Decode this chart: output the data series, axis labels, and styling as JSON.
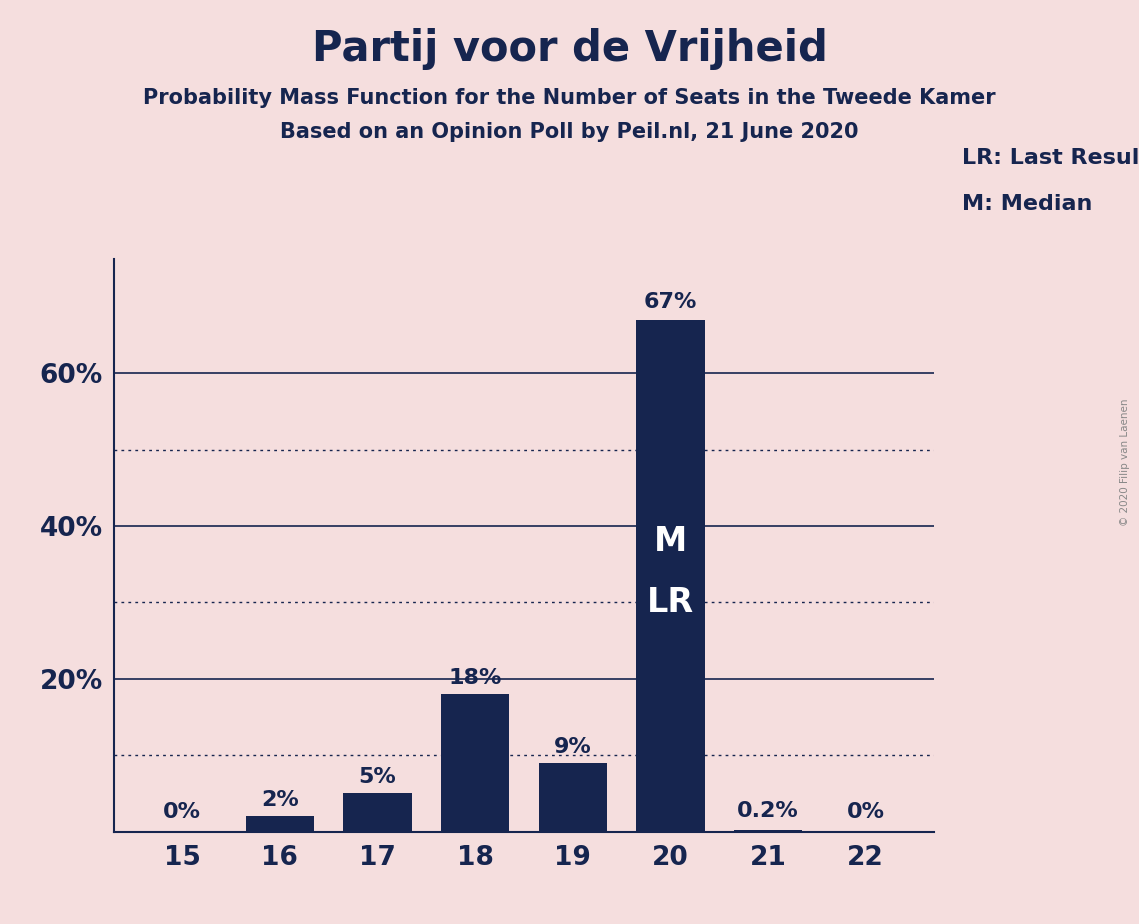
{
  "title": "Partij voor de Vrijheid",
  "subtitle1": "Probability Mass Function for the Number of Seats in the Tweede Kamer",
  "subtitle2": "Based on an Opinion Poll by Peil.nl, 21 June 2020",
  "categories": [
    15,
    16,
    17,
    18,
    19,
    20,
    21,
    22
  ],
  "values": [
    0.0,
    2.0,
    5.0,
    18.0,
    9.0,
    67.0,
    0.2,
    0.0
  ],
  "bar_labels": [
    "0%",
    "2%",
    "5%",
    "18%",
    "9%",
    "67%",
    "0.2%",
    "0%"
  ],
  "bar_color": "#16254f",
  "background_color": "#f5dede",
  "text_color": "#16254f",
  "label_color_inside": "#ffffff",
  "label_color_outside": "#16254f",
  "median_label": "M",
  "last_result_label": "LR",
  "median_bar_index": 5,
  "legend_text1": "LR: Last Result",
  "legend_text2": "M: Median",
  "copyright_text": "© 2020 Filip van Laenen",
  "solid_gridlines": [
    20,
    40,
    60
  ],
  "dotted_gridlines": [
    10,
    30,
    50
  ],
  "ylim": [
    0,
    75
  ],
  "bar_width": 0.7,
  "title_fontsize": 30,
  "subtitle_fontsize": 15,
  "tick_fontsize": 19,
  "label_fontsize": 16,
  "legend_fontsize": 16,
  "inner_label_fontsize": 24,
  "ytick_positions": [
    20,
    40,
    60
  ],
  "ytick_labels": [
    "20%",
    "40%",
    "60%"
  ]
}
